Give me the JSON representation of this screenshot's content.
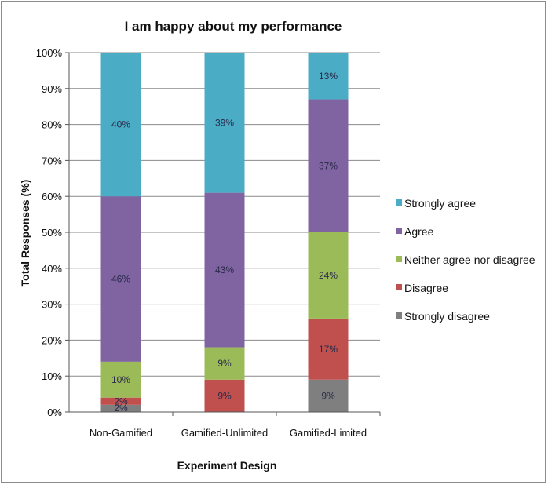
{
  "chart_data": {
    "type": "bar",
    "stacked": true,
    "title": "I am happy about my performance",
    "xlabel": "Experiment Design",
    "ylabel": "Total Responses (%)",
    "ylim": [
      0,
      100
    ],
    "yticks": [
      "0%",
      "10%",
      "20%",
      "30%",
      "40%",
      "50%",
      "60%",
      "70%",
      "80%",
      "90%",
      "100%"
    ],
    "categories": [
      "Non-Gamified",
      "Gamified-Unlimited",
      "Gamified-Limited"
    ],
    "series": [
      {
        "name": "Strongly disagree",
        "color": "#7f7f7f",
        "values": [
          2,
          0,
          9
        ],
        "labels": [
          "2%",
          "",
          "9%"
        ]
      },
      {
        "name": "Disagree",
        "color": "#c0504d",
        "values": [
          2,
          9,
          17
        ],
        "labels": [
          "2%",
          "9%",
          "17%"
        ]
      },
      {
        "name": "Neither agree nor disagree",
        "color": "#9bbb59",
        "values": [
          10,
          9,
          24
        ],
        "labels": [
          "10%",
          "9%",
          "24%"
        ]
      },
      {
        "name": "Agree",
        "color": "#8064a2",
        "values": [
          46,
          43,
          37
        ],
        "labels": [
          "46%",
          "43%",
          "37%"
        ]
      },
      {
        "name": "Strongly agree",
        "color": "#4bacc6",
        "values": [
          40,
          39,
          13
        ],
        "labels": [
          "40%",
          "39%",
          "13%"
        ]
      }
    ],
    "legend": [
      "Strongly agree",
      "Agree",
      "Neither agree nor disagree",
      "Disagree",
      "Strongly disagree"
    ],
    "legend_position": "right",
    "grid": true
  }
}
